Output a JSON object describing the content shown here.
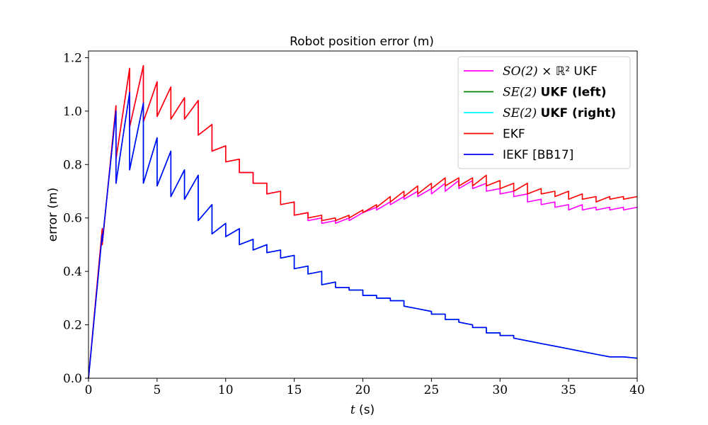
{
  "chart_data": {
    "type": "line",
    "title": "Robot position error (m)",
    "xlabel_var": "t",
    "xlabel_unit": " (s)",
    "ylabel": "error (m)",
    "xlim": [
      0,
      40
    ],
    "ylim": [
      0,
      1.225
    ],
    "xticks": [
      0,
      5,
      10,
      15,
      20,
      25,
      30,
      35,
      40
    ],
    "xtick_labels": [
      "0",
      "5",
      "10",
      "15",
      "20",
      "25",
      "30",
      "35",
      "40"
    ],
    "yticks": [
      0,
      0.2,
      0.4,
      0.6,
      0.8,
      1.0,
      1.2
    ],
    "ytick_labels": [
      "0.0",
      "0.2",
      "0.4",
      "0.6",
      "0.8",
      "1.0",
      "1.2"
    ],
    "grid": false,
    "legend_position": "top-right",
    "series": [
      {
        "legend": {
          "math": "SO(2)",
          "rest": " × ℝ² UKF",
          "bold": ""
        },
        "color": "#ff00ff",
        "x": [
          0,
          1,
          1,
          2,
          2,
          3,
          3,
          4,
          4,
          5,
          5,
          6,
          6,
          7,
          7,
          8,
          8,
          9,
          9,
          10,
          10,
          11,
          11,
          12,
          12,
          13,
          13,
          14,
          14,
          15,
          15,
          16,
          16,
          17,
          17,
          18,
          18,
          19,
          19,
          20,
          20,
          21,
          21,
          22,
          22,
          23,
          23,
          24,
          24,
          25,
          25,
          26,
          26,
          27,
          27,
          28,
          28,
          29,
          29,
          30,
          30,
          31,
          31,
          32,
          32,
          33,
          33,
          34,
          34,
          35,
          35,
          36,
          36,
          37,
          37,
          38,
          38,
          39,
          39,
          40
        ],
        "y": [
          0,
          0.56,
          0.5,
          1.02,
          0.82,
          1.16,
          0.94,
          1.17,
          0.96,
          1.11,
          0.98,
          1.09,
          0.97,
          1.05,
          0.97,
          1.04,
          0.91,
          0.95,
          0.85,
          0.87,
          0.81,
          0.82,
          0.77,
          0.77,
          0.73,
          0.73,
          0.69,
          0.7,
          0.65,
          0.66,
          0.61,
          0.62,
          0.59,
          0.6,
          0.58,
          0.59,
          0.58,
          0.6,
          0.59,
          0.62,
          0.62,
          0.64,
          0.63,
          0.66,
          0.65,
          0.68,
          0.67,
          0.7,
          0.68,
          0.71,
          0.69,
          0.73,
          0.7,
          0.74,
          0.71,
          0.74,
          0.71,
          0.73,
          0.7,
          0.71,
          0.69,
          0.7,
          0.68,
          0.69,
          0.66,
          0.67,
          0.65,
          0.66,
          0.64,
          0.65,
          0.63,
          0.65,
          0.63,
          0.64,
          0.63,
          0.64,
          0.63,
          0.64,
          0.63,
          0.64
        ]
      },
      {
        "legend": {
          "math": "SE(2)",
          "rest": " ",
          "bold": "UKF (left)"
        },
        "color": "#008000",
        "x": [
          0,
          1,
          1,
          2,
          2,
          3,
          3,
          4,
          4,
          5,
          5,
          6,
          6,
          7,
          7,
          8,
          8,
          9,
          9,
          10,
          10,
          11,
          11,
          12,
          12,
          13,
          13,
          14,
          14,
          15,
          15,
          16,
          16,
          17,
          17,
          18,
          18,
          19,
          19,
          20,
          20,
          21,
          21,
          22,
          22,
          23,
          23,
          24,
          24,
          25,
          25,
          26,
          26,
          27,
          27,
          28,
          28,
          29,
          29,
          30,
          30,
          31,
          31,
          32,
          32,
          33,
          33,
          34,
          34,
          35,
          35,
          36,
          36,
          37,
          37,
          38,
          38,
          39,
          39,
          40
        ],
        "y": [
          0,
          0.54,
          0.51,
          1.0,
          0.73,
          1.07,
          0.78,
          1.03,
          0.73,
          0.9,
          0.72,
          0.85,
          0.68,
          0.78,
          0.67,
          0.76,
          0.59,
          0.65,
          0.54,
          0.58,
          0.53,
          0.56,
          0.5,
          0.52,
          0.48,
          0.5,
          0.47,
          0.48,
          0.45,
          0.46,
          0.41,
          0.42,
          0.39,
          0.4,
          0.35,
          0.36,
          0.34,
          0.34,
          0.33,
          0.33,
          0.31,
          0.31,
          0.3,
          0.3,
          0.29,
          0.29,
          0.27,
          0.26,
          0.26,
          0.25,
          0.24,
          0.24,
          0.22,
          0.22,
          0.21,
          0.2,
          0.19,
          0.19,
          0.17,
          0.17,
          0.16,
          0.16,
          0.15,
          0.14,
          0.14,
          0.13,
          0.13,
          0.12,
          0.12,
          0.11,
          0.11,
          0.1,
          0.1,
          0.09,
          0.09,
          0.08,
          0.08,
          0.08,
          0.08,
          0.075
        ]
      },
      {
        "legend": {
          "math": "SE(2)",
          "rest": " ",
          "bold": "UKF (right)"
        },
        "color": "#00ffff",
        "x": [
          0,
          1,
          1,
          2,
          2,
          3,
          3,
          4,
          4,
          5,
          5,
          6,
          6,
          7,
          7,
          8,
          8,
          9,
          9,
          10,
          10,
          11,
          11,
          12,
          12,
          13,
          13,
          14,
          14,
          15,
          15,
          16,
          16,
          17,
          17,
          18,
          18,
          19,
          19,
          20,
          20,
          21,
          21,
          22,
          22,
          23,
          23,
          24,
          24,
          25,
          25,
          26,
          26,
          27,
          27,
          28,
          28,
          29,
          29,
          30,
          30,
          31,
          31,
          32,
          32,
          33,
          33,
          34,
          34,
          35,
          35,
          36,
          36,
          37,
          37,
          38,
          38,
          39,
          39,
          40
        ],
        "y": [
          0,
          0.54,
          0.51,
          1.0,
          0.73,
          1.07,
          0.78,
          1.03,
          0.73,
          0.9,
          0.72,
          0.85,
          0.68,
          0.78,
          0.67,
          0.76,
          0.59,
          0.65,
          0.54,
          0.58,
          0.53,
          0.56,
          0.5,
          0.52,
          0.48,
          0.5,
          0.47,
          0.48,
          0.45,
          0.46,
          0.41,
          0.42,
          0.39,
          0.4,
          0.35,
          0.36,
          0.34,
          0.34,
          0.33,
          0.33,
          0.31,
          0.31,
          0.3,
          0.3,
          0.29,
          0.29,
          0.27,
          0.26,
          0.26,
          0.25,
          0.24,
          0.24,
          0.22,
          0.22,
          0.21,
          0.2,
          0.19,
          0.19,
          0.17,
          0.17,
          0.16,
          0.16,
          0.15,
          0.14,
          0.14,
          0.13,
          0.13,
          0.12,
          0.12,
          0.11,
          0.11,
          0.1,
          0.1,
          0.09,
          0.09,
          0.08,
          0.08,
          0.08,
          0.08,
          0.075
        ]
      },
      {
        "legend": {
          "math": "",
          "rest": "EKF",
          "bold": ""
        },
        "color": "#ff0000",
        "x": [
          0,
          1,
          1,
          2,
          2,
          3,
          3,
          4,
          4,
          5,
          5,
          6,
          6,
          7,
          7,
          8,
          8,
          9,
          9,
          10,
          10,
          11,
          11,
          12,
          12,
          13,
          13,
          14,
          14,
          15,
          15,
          16,
          16,
          17,
          17,
          18,
          18,
          19,
          19,
          20,
          20,
          21,
          21,
          22,
          22,
          23,
          23,
          24,
          24,
          25,
          25,
          26,
          26,
          27,
          27,
          28,
          28,
          29,
          29,
          30,
          30,
          31,
          31,
          32,
          32,
          33,
          33,
          34,
          34,
          35,
          35,
          36,
          36,
          37,
          37,
          38,
          38,
          39,
          39,
          40
        ],
        "y": [
          0,
          0.56,
          0.5,
          1.02,
          0.82,
          1.16,
          0.94,
          1.17,
          0.96,
          1.11,
          0.98,
          1.09,
          0.97,
          1.05,
          0.97,
          1.04,
          0.91,
          0.95,
          0.85,
          0.87,
          0.81,
          0.82,
          0.77,
          0.77,
          0.73,
          0.73,
          0.69,
          0.7,
          0.65,
          0.66,
          0.61,
          0.62,
          0.6,
          0.61,
          0.59,
          0.6,
          0.59,
          0.61,
          0.6,
          0.63,
          0.62,
          0.65,
          0.64,
          0.68,
          0.66,
          0.7,
          0.68,
          0.72,
          0.69,
          0.73,
          0.71,
          0.75,
          0.72,
          0.75,
          0.72,
          0.75,
          0.72,
          0.76,
          0.72,
          0.74,
          0.71,
          0.73,
          0.7,
          0.73,
          0.69,
          0.71,
          0.69,
          0.7,
          0.68,
          0.7,
          0.67,
          0.69,
          0.67,
          0.68,
          0.66,
          0.68,
          0.67,
          0.68,
          0.67,
          0.68
        ]
      },
      {
        "legend": {
          "math": "",
          "rest": "IEKF [BB17]",
          "bold": ""
        },
        "color": "#0000ff",
        "x": [
          0,
          1,
          1,
          2,
          2,
          3,
          3,
          4,
          4,
          5,
          5,
          6,
          6,
          7,
          7,
          8,
          8,
          9,
          9,
          10,
          10,
          11,
          11,
          12,
          12,
          13,
          13,
          14,
          14,
          15,
          15,
          16,
          16,
          17,
          17,
          18,
          18,
          19,
          19,
          20,
          20,
          21,
          21,
          22,
          22,
          23,
          23,
          24,
          24,
          25,
          25,
          26,
          26,
          27,
          27,
          28,
          28,
          29,
          29,
          30,
          30,
          31,
          31,
          32,
          32,
          33,
          33,
          34,
          34,
          35,
          35,
          36,
          36,
          37,
          37,
          38,
          38,
          39,
          39,
          40
        ],
        "y": [
          0,
          0.54,
          0.51,
          1.0,
          0.73,
          1.07,
          0.78,
          1.03,
          0.73,
          0.9,
          0.72,
          0.85,
          0.68,
          0.78,
          0.67,
          0.76,
          0.59,
          0.65,
          0.54,
          0.58,
          0.53,
          0.56,
          0.5,
          0.52,
          0.48,
          0.5,
          0.47,
          0.48,
          0.45,
          0.46,
          0.41,
          0.42,
          0.39,
          0.4,
          0.35,
          0.36,
          0.34,
          0.34,
          0.33,
          0.33,
          0.31,
          0.31,
          0.3,
          0.3,
          0.29,
          0.29,
          0.27,
          0.26,
          0.26,
          0.25,
          0.24,
          0.24,
          0.22,
          0.22,
          0.21,
          0.2,
          0.19,
          0.19,
          0.17,
          0.17,
          0.16,
          0.16,
          0.15,
          0.14,
          0.14,
          0.13,
          0.13,
          0.12,
          0.12,
          0.11,
          0.11,
          0.1,
          0.1,
          0.09,
          0.09,
          0.08,
          0.08,
          0.08,
          0.08,
          0.075
        ]
      }
    ]
  }
}
